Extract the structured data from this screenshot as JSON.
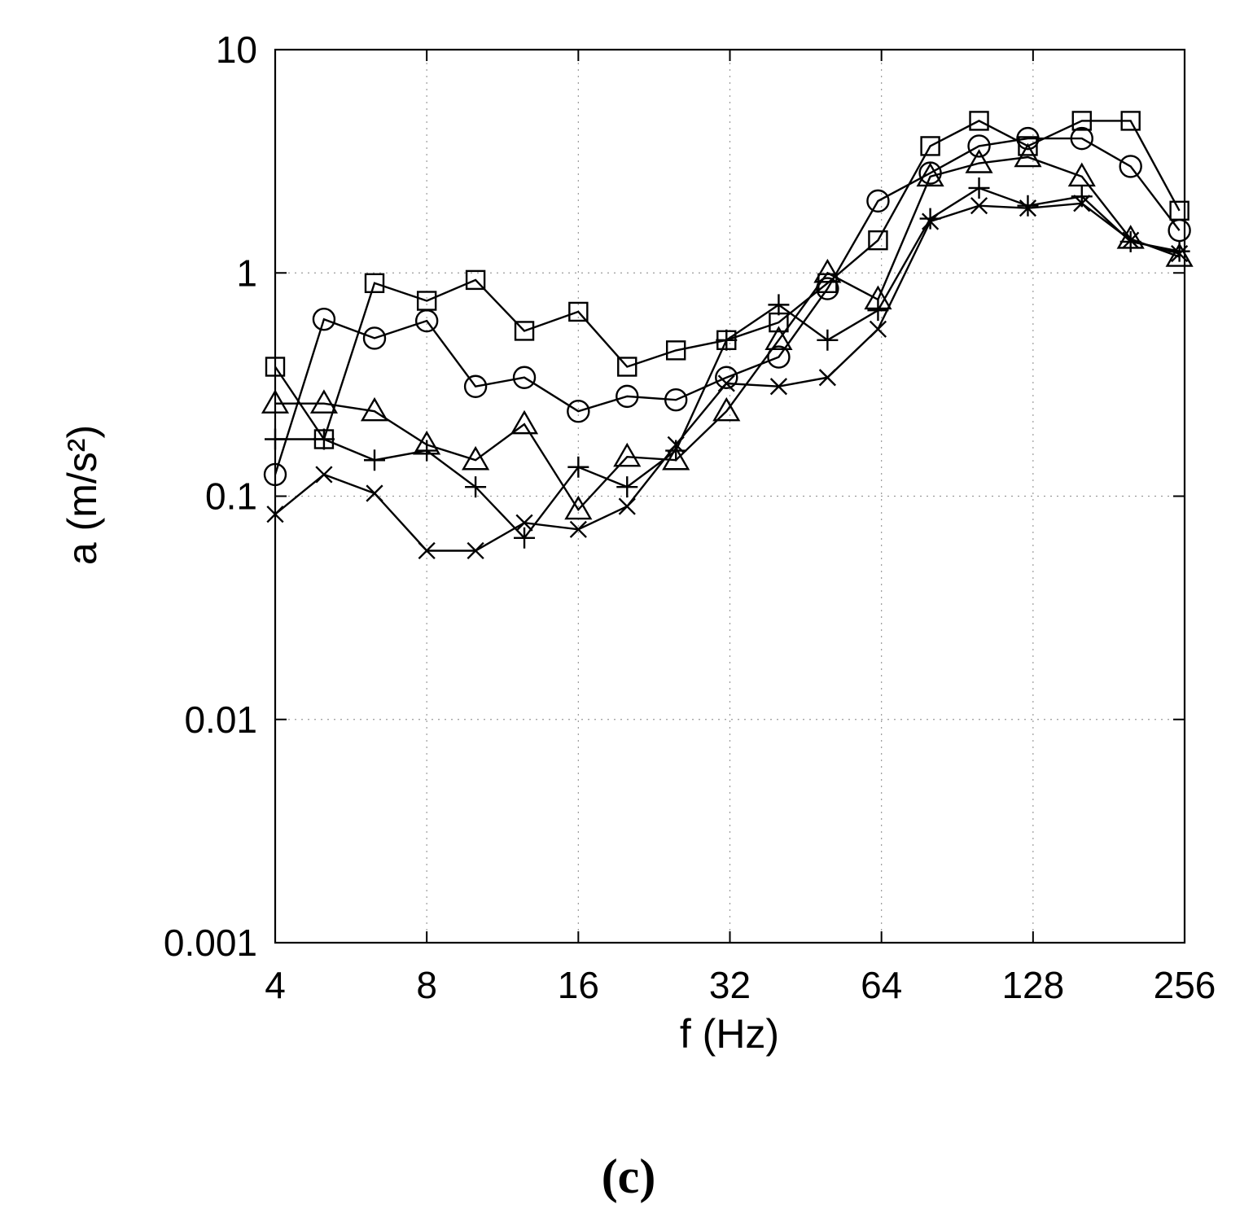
{
  "chart_data": {
    "type": "line",
    "xscale": "log2",
    "yscale": "log10",
    "xlim": [
      4,
      256
    ],
    "ylim": [
      0.001,
      10
    ],
    "xticks": [
      4,
      8,
      16,
      32,
      64,
      128,
      256
    ],
    "xtick_labels": [
      "4",
      "8",
      "16",
      "32",
      "64",
      "128",
      "256"
    ],
    "yticks": [
      0.001,
      0.01,
      0.1,
      1,
      10
    ],
    "ytick_labels": [
      "0.001",
      "0.01",
      "0.1",
      "1",
      "10"
    ],
    "xlabel": "f (Hz)",
    "ylabel": "a (m/s²)",
    "grid": true,
    "x": [
      4,
      5,
      6.3,
      8,
      10,
      12.5,
      16,
      20,
      25,
      31.5,
      40,
      50,
      63,
      80,
      100,
      125,
      160,
      200,
      250
    ],
    "series": [
      {
        "name": "square",
        "marker": "square",
        "values": [
          0.38,
          0.18,
          0.9,
          0.75,
          0.93,
          0.55,
          0.67,
          0.38,
          0.45,
          0.5,
          0.6,
          0.9,
          1.4,
          3.7,
          4.8,
          3.7,
          4.8,
          4.8,
          1.9
        ]
      },
      {
        "name": "circle",
        "marker": "circle",
        "values": [
          0.125,
          0.62,
          0.51,
          0.61,
          0.31,
          0.34,
          0.24,
          0.28,
          0.27,
          0.34,
          0.42,
          0.85,
          2.1,
          2.8,
          3.7,
          4.0,
          4.0,
          3.0,
          1.55
        ]
      },
      {
        "name": "triangle",
        "marker": "triangle",
        "values": [
          0.26,
          0.26,
          0.24,
          0.17,
          0.145,
          0.21,
          0.087,
          0.15,
          0.145,
          0.24,
          0.5,
          1.0,
          0.76,
          2.7,
          3.1,
          3.3,
          2.7,
          1.42,
          1.18
        ]
      },
      {
        "name": "plus",
        "marker": "plus",
        "values": [
          0.18,
          0.18,
          0.145,
          0.16,
          0.11,
          0.065,
          0.135,
          0.11,
          0.16,
          0.5,
          0.72,
          0.5,
          0.68,
          1.75,
          2.4,
          2.0,
          2.2,
          1.38,
          1.25
        ]
      },
      {
        "name": "cross",
        "marker": "x",
        "values": [
          0.083,
          0.125,
          0.103,
          0.057,
          0.057,
          0.076,
          0.071,
          0.09,
          0.17,
          0.32,
          0.31,
          0.34,
          0.56,
          1.7,
          2.0,
          1.95,
          2.05,
          1.4,
          1.22
        ]
      }
    ],
    "panel_label": "(c)"
  }
}
